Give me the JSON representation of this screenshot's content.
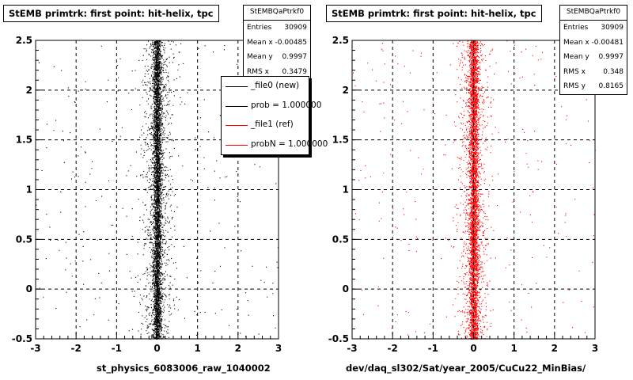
{
  "chart_data": [
    {
      "type": "scatter",
      "title": "StEMB primtrk: first point: hit-helix, tpc",
      "xlabel": "st_physics_6083006_raw_1040002",
      "xlim": [
        -3,
        3
      ],
      "ylim": [
        -0.5,
        2.5
      ],
      "xticks": [
        "-3",
        "-2",
        "-1",
        "0",
        "1",
        "2",
        "3"
      ],
      "yticks": [
        "-0.5",
        "0",
        "0.5",
        "1",
        "1.5",
        "2",
        "2.5"
      ],
      "grid": true,
      "marker_color": "#000000",
      "stats": {
        "name": "StEMBQaPtrkf0",
        "rows": [
          {
            "label": "Entries",
            "value": "30909"
          },
          {
            "label": "Mean x",
            "value": "-0.00485"
          },
          {
            "label": "Mean y",
            "value": "0.9997"
          },
          {
            "label": "RMS x",
            "value": "0.3479"
          }
        ]
      },
      "legend": {
        "placement": "right",
        "entries": [
          {
            "label": "_file0 (new)",
            "color": "#000000"
          },
          {
            "label": "prob = 1.000000",
            "color": "#000000"
          },
          {
            "label": "_file1 (ref)",
            "color": "#ff0000"
          },
          {
            "label": "probN = 1.000000",
            "color": "#ff0000"
          }
        ]
      }
    },
    {
      "type": "scatter",
      "title": "StEMB primtrk: first point: hit-helix, tpc",
      "xlabel": "dev/daq_sl302/Sat/year_2005/CuCu22_MinBias/",
      "xlim": [
        -3,
        3
      ],
      "ylim": [
        -0.5,
        2.5
      ],
      "xticks": [
        "-3",
        "-2",
        "-1",
        "0",
        "1",
        "2",
        "3"
      ],
      "yticks": [
        "-0.5",
        "0",
        "0.5",
        "1",
        "1.5",
        "2",
        "2.5"
      ],
      "grid": true,
      "marker_color": "#ff0000",
      "stats": {
        "name": "StEMBQaPtrkf0",
        "rows": [
          {
            "label": "Entries",
            "value": "30909"
          },
          {
            "label": "Mean x",
            "value": "-0.00481"
          },
          {
            "label": "Mean y",
            "value": "0.9997"
          },
          {
            "label": "RMS x",
            "value": "0.348"
          },
          {
            "label": "RMS y",
            "value": "0.8165"
          }
        ]
      }
    }
  ]
}
